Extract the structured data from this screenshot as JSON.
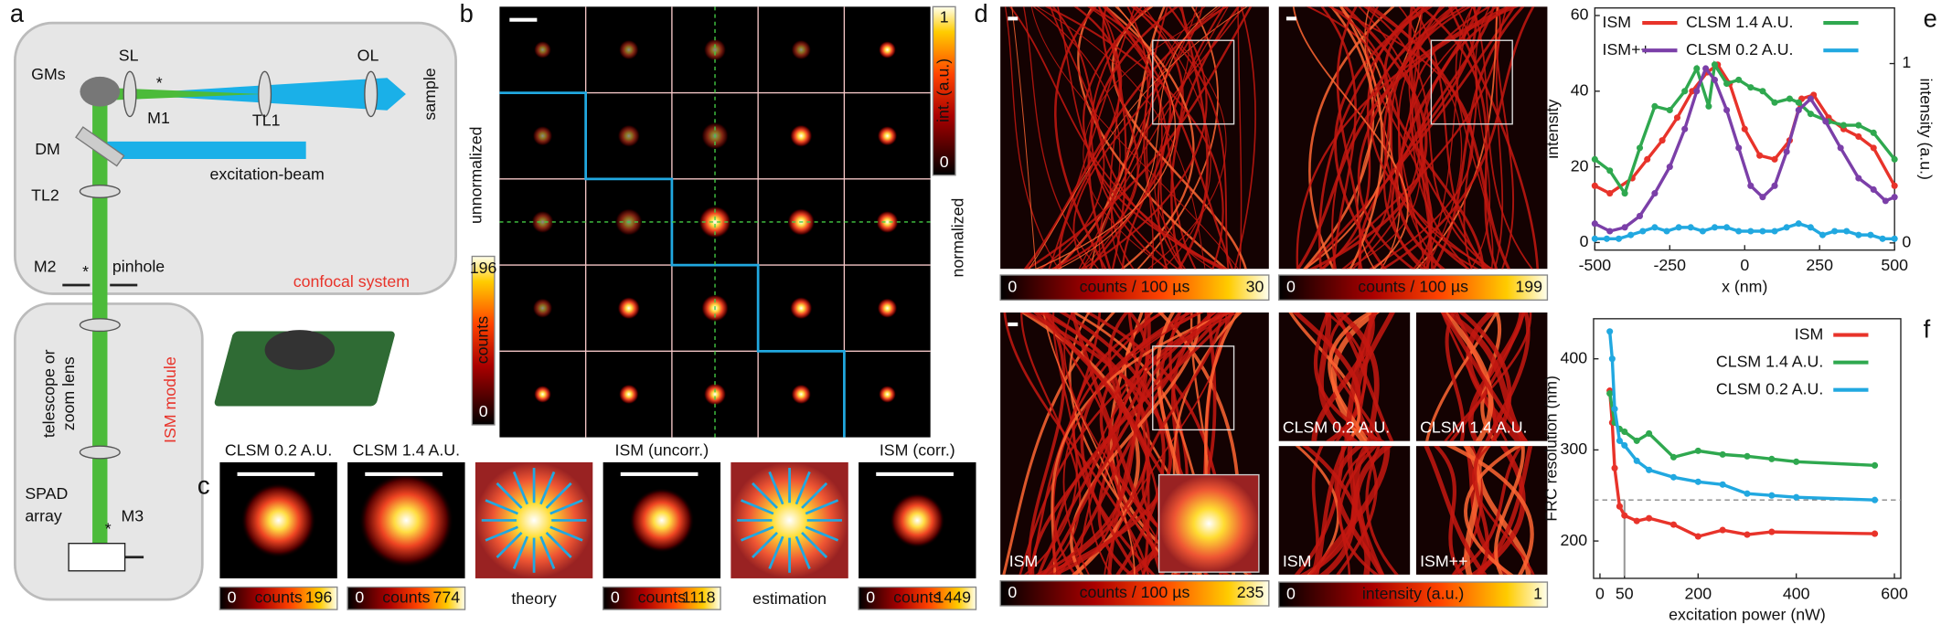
{
  "panel_labels": [
    "a",
    "b",
    "c",
    "d",
    "e",
    "f"
  ],
  "setup": {
    "gms": "GMs",
    "sl": "SL",
    "ol": "OL",
    "m1": "M1",
    "tl1": "TL1",
    "sample": "sample",
    "dm": "DM",
    "excitation_beam": "excitation-beam",
    "tl2": "TL2",
    "m2": "M2",
    "pinhole": "pinhole",
    "confocal_system": "confocal system",
    "telescope": [
      "telescope or",
      "zoom lens"
    ],
    "ism_module": "ISM module",
    "spad": [
      "SPAD",
      "array"
    ],
    "m3": "M3",
    "asterisk": "*"
  },
  "psf_grid": {
    "normalized": {
      "title": "normalized",
      "label": "int. (a.u.)",
      "min": 0,
      "max": 1
    },
    "unnormalized": {
      "title": "unnormalized",
      "label": "counts",
      "min": 0,
      "max": 196
    }
  },
  "psf_comparison": [
    {
      "title": "CLSM 0.2 A.U.",
      "colorbar": {
        "min": 0,
        "label": "counts",
        "max": 196
      }
    },
    {
      "title": "CLSM 1.4 A.U.",
      "colorbar": {
        "min": 0,
        "label": "counts",
        "max": 774
      }
    },
    {
      "caption": "theory"
    },
    {
      "title": "ISM (uncorr.)",
      "colorbar": {
        "min": 0,
        "label": "counts",
        "max": 1118
      }
    },
    {
      "caption": "estimation"
    },
    {
      "title": "ISM (corr.)",
      "colorbar": {
        "min": 0,
        "label": "counts",
        "max": 1449
      }
    }
  ],
  "images": {
    "panels": [
      {
        "colorbar": {
          "min": 0,
          "label": "counts / 100 µs",
          "max": 30
        }
      },
      {
        "colorbar": {
          "min": 0,
          "label": "counts / 100 µs",
          "max": 199
        }
      },
      {
        "label": "ISM",
        "colorbar": {
          "min": 0,
          "label": "counts / 100 µs",
          "max": 235
        }
      }
    ],
    "zooms": {
      "labels": [
        "CLSM 0.2 A.U.",
        "CLSM 1.4 A.U.",
        "ISM",
        "ISM++"
      ],
      "colorbar": {
        "min": 0,
        "label": "intensity (a.u.)",
        "max": 1
      }
    }
  },
  "chart_data": [
    {
      "type": "line",
      "x_label": "x (nm)",
      "y_label": "intensity",
      "y2_label": "intensity (a.u.)",
      "xlim": [
        -500,
        500
      ],
      "ylim": [
        -2,
        62
      ],
      "y2lim": [
        -0.04,
        1.31
      ],
      "xticks": [
        -500,
        -250,
        0,
        250,
        500
      ],
      "yticks": [
        0,
        20,
        40,
        60
      ],
      "y2ticks": [
        0,
        1
      ],
      "series": [
        {
          "name": "ISM",
          "color": "#e8332a",
          "x": [
            -500,
            -450,
            -375,
            -325,
            -275,
            -225,
            -175,
            -125,
            -90,
            -50,
            0,
            50,
            100,
            150,
            190,
            230,
            280,
            330,
            380,
            430,
            500
          ],
          "values": [
            15,
            13,
            17,
            22,
            27,
            33,
            40,
            45,
            47,
            42,
            30,
            23,
            22,
            27,
            38,
            39,
            33,
            30,
            28,
            25,
            15
          ]
        },
        {
          "name": "CLSM 1.4 A.U.",
          "color": "#2fa84f",
          "x": [
            -500,
            -450,
            -400,
            -350,
            -300,
            -250,
            -200,
            -160,
            -120,
            -100,
            -60,
            -20,
            20,
            60,
            100,
            150,
            180,
            220,
            280,
            330,
            380,
            430,
            500
          ],
          "values": [
            22,
            19,
            13,
            25,
            36,
            35,
            40,
            46,
            36,
            47,
            42,
            43,
            41,
            40,
            37,
            38,
            37,
            34,
            32,
            31,
            31,
            29,
            22
          ]
        },
        {
          "name": "ISM++",
          "color": "#7b3fa8",
          "x": [
            -500,
            -450,
            -400,
            -350,
            -300,
            -250,
            -200,
            -160,
            -130,
            -100,
            -60,
            -20,
            20,
            60,
            100,
            140,
            180,
            220,
            270,
            320,
            380,
            430,
            470,
            500
          ],
          "values": [
            5,
            3,
            4,
            7,
            13,
            20,
            30,
            40,
            46,
            43,
            35,
            25,
            15,
            12,
            15,
            24,
            35,
            38,
            32,
            25,
            17,
            14,
            11,
            12
          ]
        },
        {
          "name": "CLSM 0.2 A.U.",
          "color": "#21a8e0",
          "x": [
            -500,
            -460,
            -420,
            -380,
            -340,
            -300,
            -260,
            -220,
            -180,
            -140,
            -100,
            -60,
            -20,
            20,
            60,
            100,
            140,
            180,
            220,
            260,
            300,
            340,
            380,
            420,
            460,
            500
          ],
          "values": [
            1,
            1,
            1,
            2,
            3,
            4,
            3,
            4,
            4,
            3,
            4,
            4,
            3,
            3,
            3,
            3,
            4,
            5,
            4,
            2,
            3,
            3,
            2,
            2,
            1,
            1
          ]
        }
      ]
    },
    {
      "type": "line",
      "x_label": "excitation power (nW)",
      "y_label": "FRC resolution (nm)",
      "xlim": [
        -13,
        613
      ],
      "ylim": [
        159,
        444
      ],
      "xticks": [
        0,
        50,
        200,
        400,
        600
      ],
      "yticks": [
        200,
        300,
        400
      ],
      "hline": 245,
      "vline": 50,
      "series": [
        {
          "name": "ISM",
          "color": "#e8332a",
          "x": [
            20,
            25,
            30,
            40,
            50,
            75,
            100,
            150,
            200,
            250,
            300,
            350,
            560
          ],
          "values": [
            365,
            330,
            280,
            238,
            228,
            222,
            225,
            218,
            205,
            212,
            207,
            210,
            208
          ]
        },
        {
          "name": "CLSM 1.4 A.U.",
          "color": "#2fa84f",
          "x": [
            20,
            30,
            40,
            50,
            75,
            100,
            150,
            200,
            250,
            300,
            350,
            400,
            560
          ],
          "values": [
            362,
            330,
            323,
            320,
            310,
            318,
            292,
            299,
            295,
            293,
            290,
            287,
            283
          ]
        },
        {
          "name": "CLSM 0.2 A.U.",
          "color": "#21a8e0",
          "x": [
            20,
            25,
            30,
            40,
            50,
            75,
            100,
            150,
            200,
            250,
            300,
            350,
            400,
            560
          ],
          "values": [
            430,
            400,
            345,
            310,
            305,
            288,
            278,
            270,
            265,
            262,
            252,
            250,
            248,
            245
          ]
        }
      ]
    }
  ]
}
